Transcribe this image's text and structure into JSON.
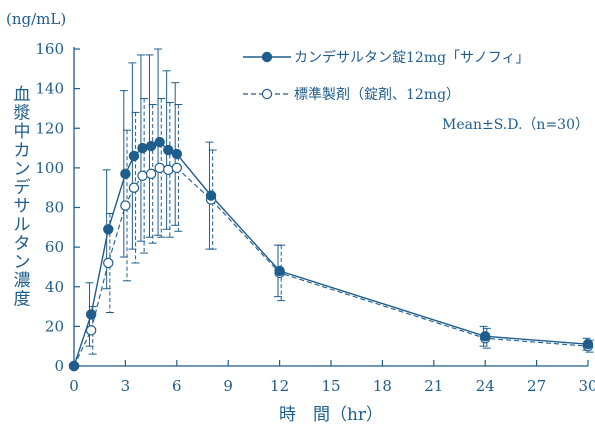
{
  "chart_data": {
    "type": "line",
    "y_unit": "(ng/mL)",
    "ylabel": "血漿中カンデサルタン濃度",
    "xlabel": "時　間（hr）",
    "ylim": [
      0,
      160
    ],
    "xlim": [
      0,
      30
    ],
    "x_ticks": [
      0,
      3,
      6,
      9,
      12,
      15,
      18,
      21,
      24,
      27,
      30
    ],
    "y_ticks": [
      0,
      20,
      40,
      60,
      80,
      100,
      120,
      140,
      160
    ],
    "annotation": "Mean±S.D.（n=30）",
    "grid": false,
    "legend_position": "top-right",
    "colors": {
      "main": "#1f5d8c",
      "background": "#ffffff"
    },
    "series": [
      {
        "name": "カンデサルタン錠12mg「サノフィ」",
        "style": "solid-filled-circle",
        "x": [
          0,
          1,
          2,
          3,
          3.5,
          4,
          4.5,
          5,
          5.5,
          6,
          8,
          12,
          24,
          30
        ],
        "y": [
          0,
          26,
          69,
          97,
          106,
          110,
          111,
          113,
          109,
          107,
          86,
          48,
          15,
          11
        ],
        "sd": [
          0,
          16,
          30,
          42,
          47,
          47,
          46,
          47,
          40,
          36,
          27,
          13,
          5,
          3
        ]
      },
      {
        "name": "標準製剤（錠剤、12mg）",
        "style": "dashed-open-circle",
        "x": [
          0,
          1,
          2,
          3,
          3.5,
          4,
          4.5,
          5,
          5.5,
          6,
          8,
          12,
          24,
          30
        ],
        "y": [
          0,
          18,
          52,
          81,
          90,
          96,
          97,
          100,
          99,
          100,
          84,
          47,
          14,
          10
        ],
        "sd": [
          0,
          12,
          25,
          38,
          38,
          39,
          35,
          35,
          34,
          32,
          25,
          14,
          5,
          3
        ]
      }
    ]
  }
}
